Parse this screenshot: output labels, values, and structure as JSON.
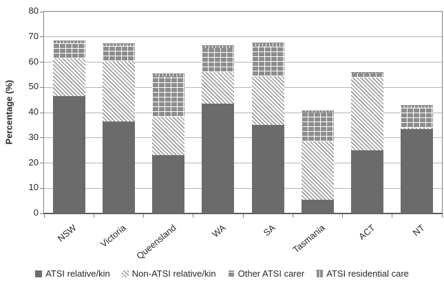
{
  "chart_data": {
    "type": "bar",
    "stacked": true,
    "title": "",
    "ylabel": "Percentage (%)",
    "xlabel": "",
    "ylim": [
      0,
      80
    ],
    "ytick_step": 10,
    "grid": true,
    "legend_position": "bottom",
    "categories": [
      "NSW",
      "Victoria",
      "Queensland",
      "WA",
      "SA",
      "Tasmania",
      "ACT",
      "NT"
    ],
    "series": [
      {
        "name": "ATSI relative/kin",
        "pattern": "solid",
        "values": [
          46.5,
          36.5,
          23,
          43.5,
          35,
          5.5,
          25,
          33.5
        ]
      },
      {
        "name": "Non-ATSI relative/kin",
        "pattern": "hatch",
        "values": [
          15,
          24,
          15.5,
          12.5,
          19.5,
          23,
          29,
          0.5
        ]
      },
      {
        "name": "Other ATSI carer",
        "pattern": "grid",
        "values": [
          6,
          6,
          16,
          9.5,
          12,
          11.5,
          1.5,
          7.8
        ]
      },
      {
        "name": "ATSI residential care",
        "pattern": "vlines",
        "values": [
          0.8,
          0.8,
          0.8,
          0.8,
          1,
          0.5,
          0.3,
          0.8
        ]
      }
    ],
    "totals": [
      68.3,
      67.3,
      55.3,
      66.3,
      67.5,
      40.5,
      55.8,
      42.6
    ],
    "colors": {
      "bar_dark": "#6b6b6b",
      "bar_mid": "#8d8d8d",
      "hatch_line": "#9c9c9c",
      "gridline": "#b3b3b3",
      "frame": "#808080",
      "axis_line": "#595959",
      "text": "#262626"
    }
  }
}
